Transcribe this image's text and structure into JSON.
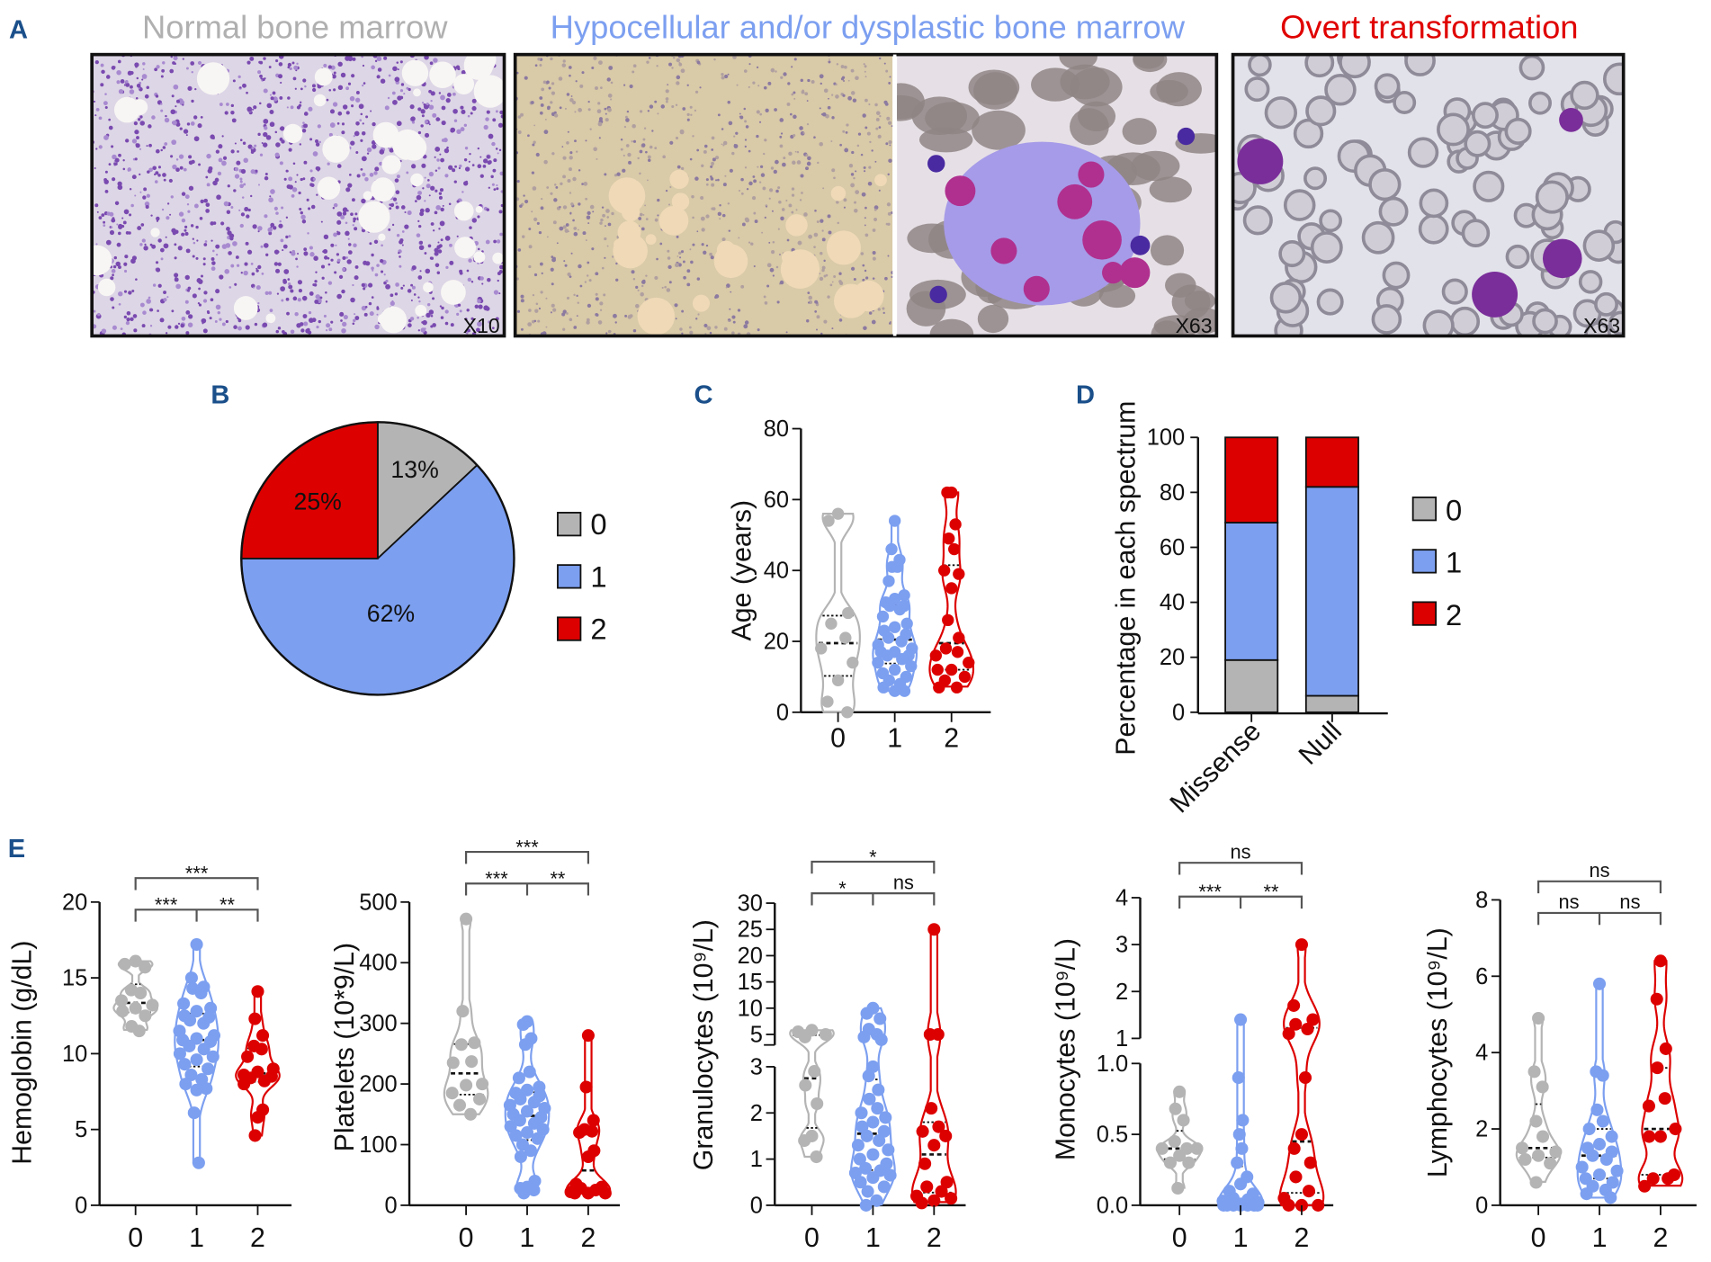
{
  "colors": {
    "0": "#b4b4b4",
    "1": "#7c9ff0",
    "2": "#dd0000",
    "title_normal": "#b0b0b0",
    "title_hypo": "#7c9ff0",
    "title_overt": "#e00000",
    "letter": "#1a4f8a"
  },
  "panel_letters": {
    "a": "A",
    "b": "B",
    "c": "C",
    "d": "D",
    "e": "E"
  },
  "panel_a": {
    "titles": {
      "normal": "Normal bone marrow",
      "hypo": "Hypocellular and/or dysplastic bone marrow",
      "overt": "Overt transformation"
    },
    "magnifications": [
      "X10",
      "X63",
      "X63"
    ]
  },
  "chart_data": [
    {
      "panel": "B",
      "type": "pie",
      "slices": [
        {
          "label": "0",
          "value": 13,
          "text": "13%"
        },
        {
          "label": "1",
          "value": 62,
          "text": "62%"
        },
        {
          "label": "2",
          "value": 25,
          "text": "25%"
        }
      ],
      "legend": [
        "0",
        "1",
        "2"
      ]
    },
    {
      "panel": "C",
      "type": "violin",
      "ylabel": "Age (years)",
      "categories": [
        "0",
        "1",
        "2"
      ],
      "ylim": [
        0,
        80
      ],
      "yticks": [
        "0",
        "20",
        "40",
        "60",
        "80"
      ],
      "groups": [
        [
          56,
          54,
          28,
          25,
          21,
          18,
          14,
          9,
          3,
          0
        ],
        [
          54,
          46,
          43,
          41,
          41,
          37,
          33,
          32,
          31,
          30,
          30,
          29,
          27,
          25,
          24,
          23,
          22,
          21,
          20,
          19,
          18,
          17,
          17,
          16,
          16,
          15,
          14,
          13,
          12,
          11,
          10,
          9,
          8,
          7,
          6,
          6
        ],
        [
          62,
          62,
          53,
          49,
          46,
          40,
          39,
          35,
          26,
          21,
          18,
          17,
          16,
          14,
          12,
          12,
          10,
          9,
          7,
          7
        ]
      ],
      "comparisons": []
    },
    {
      "panel": "D",
      "type": "bar",
      "stacked": true,
      "ylabel": "Percentage in each spectrum",
      "categories": [
        "Missense",
        "Null"
      ],
      "ylim": [
        0,
        100
      ],
      "yticks": [
        "0",
        "20",
        "40",
        "60",
        "80",
        "100"
      ],
      "series": [
        {
          "name": "0",
          "values": [
            19,
            6
          ]
        },
        {
          "name": "1",
          "values": [
            50,
            76
          ]
        },
        {
          "name": "2",
          "values": [
            31,
            18
          ]
        }
      ],
      "legend": [
        "0",
        "1",
        "2"
      ]
    },
    {
      "panel": "E1",
      "type": "violin",
      "ylabel": "Hemoglobin (g/dL)",
      "categories": [
        "0",
        "1",
        "2"
      ],
      "ylim": [
        0,
        20
      ],
      "yticks": [
        "0",
        "5",
        "10",
        "15",
        "20"
      ],
      "groups": [
        [
          16.1,
          15.9,
          15.7,
          14.2,
          14.0,
          13.5,
          13.2,
          13.0,
          12.8,
          12.5,
          11.8,
          11.5
        ],
        [
          17.2,
          15.0,
          14.4,
          14.3,
          14.0,
          13.3,
          13.0,
          12.8,
          12.5,
          12.4,
          12.2,
          12.0,
          11.5,
          11.2,
          11.0,
          10.9,
          10.8,
          10.5,
          10.3,
          10.0,
          9.8,
          9.6,
          9.3,
          9.0,
          8.6,
          8.3,
          8.0,
          7.7,
          7.6,
          6.1,
          2.8
        ],
        [
          14.1,
          12.3,
          11.2,
          10.5,
          10.3,
          9.8,
          9.0,
          8.8,
          8.6,
          8.5,
          8.4,
          8.2,
          8.0,
          6.3,
          5.8,
          4.6
        ]
      ],
      "comparisons": [
        {
          "pair": "0-1",
          "label": "***"
        },
        {
          "pair": "1-2",
          "label": "**"
        },
        {
          "pair": "0-2",
          "label": "***"
        }
      ]
    },
    {
      "panel": "E2",
      "type": "violin",
      "ylabel": "Platelets (10*9/L)",
      "categories": [
        "0",
        "1",
        "2"
      ],
      "ylim": [
        0,
        500
      ],
      "yticks": [
        "0",
        "100",
        "200",
        "300",
        "400",
        "500"
      ],
      "groups": [
        [
          472,
          320,
          268,
          265,
          237,
          235,
          200,
          198,
          185,
          175,
          165,
          150
        ],
        [
          303,
          298,
          275,
          265,
          220,
          210,
          195,
          190,
          185,
          180,
          175,
          170,
          165,
          160,
          155,
          150,
          145,
          140,
          135,
          130,
          125,
          120,
          115,
          110,
          100,
          90,
          80,
          40,
          30,
          28,
          25,
          20
        ],
        [
          280,
          195,
          140,
          125,
          122,
          120,
          90,
          80,
          35,
          30,
          28,
          25,
          22,
          20,
          20,
          20
        ]
      ],
      "comparisons": [
        {
          "pair": "0-1",
          "label": "***"
        },
        {
          "pair": "1-2",
          "label": "**"
        },
        {
          "pair": "0-2",
          "label": "***"
        }
      ]
    },
    {
      "panel": "E3",
      "type": "violin",
      "ylabel": "Granulocytes (10⁹/L)",
      "categories": [
        "0",
        "1",
        "2"
      ],
      "ylim": [
        0,
        30
      ],
      "axis_break": 3,
      "yticks": [
        "0",
        "1",
        "2",
        "3",
        "5",
        "10",
        "15",
        "20",
        "25",
        "30"
      ],
      "groups": [
        [
          5.8,
          5.5,
          5.0,
          4.5,
          2.9,
          2.6,
          2.2,
          1.5,
          1.4,
          1.05
        ],
        [
          10,
          9,
          8,
          6,
          5,
          4.5,
          4,
          3,
          2.8,
          2.5,
          2.3,
          2.1,
          2.0,
          1.9,
          1.8,
          1.7,
          1.6,
          1.5,
          1.4,
          1.3,
          1.2,
          1.1,
          1.0,
          0.9,
          0.8,
          0.75,
          0.7,
          0.65,
          0.6,
          0.5,
          0.4,
          0.3,
          0.1,
          0
        ],
        [
          25,
          5,
          5,
          2.1,
          1.7,
          1.6,
          1.5,
          1.3,
          0.9,
          0.5,
          0.4,
          0.3,
          0.2,
          0.15,
          0.1,
          0.05
        ]
      ],
      "comparisons": [
        {
          "pair": "0-1",
          "label": "*"
        },
        {
          "pair": "1-2",
          "label": "ns"
        },
        {
          "pair": "0-2",
          "label": "*"
        }
      ]
    },
    {
      "panel": "E4",
      "type": "violin",
      "ylabel": "Monocytes (10⁹/L)",
      "categories": [
        "0",
        "1",
        "2"
      ],
      "ylim": [
        0,
        4
      ],
      "axis_break": 1,
      "yticks": [
        "0.0",
        "0.5",
        "1.0",
        "1",
        "2",
        "3",
        "4"
      ],
      "groups": [
        [
          0.8,
          0.68,
          0.6,
          0.45,
          0.4,
          0.4,
          0.4,
          0.35,
          0.3,
          0.3,
          0.12
        ],
        [
          1.4,
          0.9,
          0.6,
          0.5,
          0.4,
          0.3,
          0.2,
          0.15,
          0.1,
          0.08,
          0.05,
          0.04,
          0.03,
          0.02,
          0.01,
          0,
          0,
          0,
          0,
          0,
          0,
          0
        ],
        [
          3.0,
          1.7,
          1.4,
          1.3,
          1.2,
          1.1,
          0.9,
          0.5,
          0.4,
          0.3,
          0.2,
          0.1,
          0.05,
          0,
          0,
          0
        ]
      ],
      "comparisons": [
        {
          "pair": "0-1",
          "label": "***"
        },
        {
          "pair": "1-2",
          "label": "**"
        },
        {
          "pair": "0-2",
          "label": "ns"
        }
      ]
    },
    {
      "panel": "E5",
      "type": "violin",
      "ylabel": "Lymphocytes (10⁹/L)",
      "categories": [
        "0",
        "1",
        "2"
      ],
      "ylim": [
        0,
        8
      ],
      "yticks": [
        "0",
        "2",
        "4",
        "6",
        "8"
      ],
      "groups": [
        [
          4.9,
          3.5,
          3.1,
          2.2,
          1.8,
          1.5,
          1.4,
          1.3,
          1.2,
          1.1,
          0.6
        ],
        [
          5.8,
          3.5,
          3.4,
          2.5,
          2.2,
          2.0,
          1.8,
          1.6,
          1.5,
          1.4,
          1.3,
          1.2,
          1.0,
          0.9,
          0.8,
          0.7,
          0.6,
          0.5,
          0.4,
          0.3,
          0.2
        ],
        [
          6.4,
          5.4,
          4.1,
          3.6,
          2.8,
          2.6,
          2.0,
          1.8,
          1.8,
          0.8,
          0.7,
          0.7,
          0.5
        ]
      ],
      "comparisons": [
        {
          "pair": "0-1",
          "label": "ns"
        },
        {
          "pair": "1-2",
          "label": "ns"
        },
        {
          "pair": "0-2",
          "label": "ns"
        }
      ]
    }
  ]
}
